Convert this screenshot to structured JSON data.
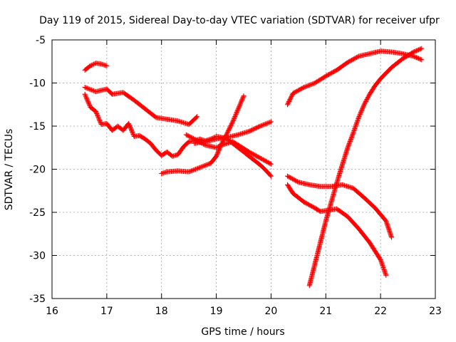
{
  "chart_data": {
    "type": "scatter",
    "title": "Day 119 of 2015, Sidereal Day-to-day VTEC variation (SDTVAR) for receiver ufpr",
    "xlabel": "GPS time / hours",
    "ylabel": "SDTVAR / TECUs",
    "xlim": [
      16,
      23
    ],
    "ylim": [
      -35,
      -5
    ],
    "xticks": [
      16,
      17,
      18,
      19,
      20,
      21,
      22,
      23
    ],
    "yticks": [
      -35,
      -30,
      -25,
      -20,
      -15,
      -10,
      -5
    ],
    "grid": true,
    "marker": "+",
    "color": "#ff0000",
    "series": [
      {
        "x": [
          16.6,
          16.7,
          16.8,
          16.9,
          17.0
        ],
        "y": [
          -8.5,
          -8.0,
          -7.7,
          -7.8,
          -8.0
        ]
      },
      {
        "x": [
          16.6,
          16.8,
          17.0,
          17.1,
          17.3,
          17.5,
          17.7,
          17.9,
          18.1,
          18.3,
          18.5,
          18.65
        ],
        "y": [
          -10.5,
          -11.0,
          -10.7,
          -11.3,
          -11.1,
          -12.0,
          -13.0,
          -14.0,
          -14.2,
          -14.4,
          -14.8,
          -13.9
        ]
      },
      {
        "x": [
          16.6,
          16.7,
          16.8,
          16.9,
          17.0,
          17.1,
          17.2,
          17.3,
          17.4,
          17.5,
          17.6,
          17.7,
          17.8,
          17.9,
          18.0,
          18.1,
          18.2,
          18.3,
          18.4,
          18.5,
          18.6,
          18.7,
          18.8,
          18.9,
          19.0,
          19.1,
          19.2,
          19.3,
          19.4,
          19.5,
          19.6,
          19.7,
          19.8,
          19.9,
          20.0
        ],
        "y": [
          -11.3,
          -12.8,
          -13.3,
          -14.8,
          -14.7,
          -15.5,
          -15.0,
          -15.5,
          -14.7,
          -16.2,
          -16.1,
          -16.5,
          -17.0,
          -17.8,
          -18.4,
          -18.0,
          -18.5,
          -18.3,
          -17.4,
          -16.8,
          -16.7,
          -16.5,
          -16.7,
          -16.5,
          -16.2,
          -16.3,
          -16.5,
          -17.0,
          -17.5,
          -18.0,
          -18.5,
          -19.0,
          -19.5,
          -20.1,
          -20.8
        ]
      },
      {
        "x": [
          18.0,
          18.1,
          18.3,
          18.5,
          18.7,
          18.9,
          19.0,
          19.1,
          19.2,
          19.3,
          19.4,
          19.5
        ],
        "y": [
          -20.5,
          -20.3,
          -20.2,
          -20.3,
          -19.8,
          -19.3,
          -18.5,
          -17.0,
          -15.8,
          -14.5,
          -13.0,
          -11.5
        ]
      },
      {
        "x": [
          18.6,
          18.8,
          19.0,
          19.2,
          19.4,
          19.6,
          19.8,
          20.0
        ],
        "y": [
          -17.0,
          -16.8,
          -16.5,
          -16.3,
          -16.0,
          -15.6,
          -15.0,
          -14.5
        ]
      },
      {
        "x": [
          18.45,
          18.6,
          18.8,
          19.0,
          19.1,
          19.2,
          19.3,
          19.4,
          19.5,
          19.6,
          19.8,
          20.0
        ],
        "y": [
          -16.0,
          -16.5,
          -17.2,
          -17.5,
          -17.2,
          -17.0,
          -16.8,
          -17.2,
          -17.6,
          -18.0,
          -18.7,
          -19.4
        ]
      },
      {
        "x": [
          20.3,
          20.4,
          20.6,
          20.8,
          21.0,
          21.2,
          21.4,
          21.6,
          21.8,
          22.0,
          22.2,
          22.4,
          22.6,
          22.75
        ],
        "y": [
          -12.5,
          -11.2,
          -10.5,
          -10.0,
          -9.2,
          -8.5,
          -7.6,
          -6.9,
          -6.6,
          -6.3,
          -6.4,
          -6.6,
          -6.9,
          -7.3
        ]
      },
      {
        "x": [
          20.3,
          20.5,
          20.7,
          20.9,
          21.1,
          21.3,
          21.5,
          21.7,
          21.9,
          22.1,
          22.2
        ],
        "y": [
          -20.8,
          -21.5,
          -21.8,
          -22.0,
          -22.0,
          -21.8,
          -22.2,
          -23.3,
          -24.5,
          -26.0,
          -27.9
        ]
      },
      {
        "x": [
          20.3,
          20.4,
          20.6,
          20.8,
          20.9,
          21.0,
          21.2,
          21.4,
          21.6,
          21.8,
          22.0,
          22.1
        ],
        "y": [
          -21.8,
          -22.8,
          -23.8,
          -24.5,
          -24.9,
          -24.8,
          -24.6,
          -25.5,
          -26.9,
          -28.5,
          -30.5,
          -32.3
        ]
      },
      {
        "x": [
          20.7,
          20.8,
          20.9,
          21.0,
          21.1,
          21.2,
          21.3,
          21.4,
          21.5,
          21.6,
          21.7,
          21.8,
          21.9,
          22.0,
          22.2,
          22.4,
          22.6,
          22.75
        ],
        "y": [
          -33.5,
          -31.0,
          -28.5,
          -26.0,
          -23.8,
          -21.6,
          -19.5,
          -17.5,
          -15.8,
          -14.0,
          -12.5,
          -11.3,
          -10.3,
          -9.5,
          -8.2,
          -7.2,
          -6.4,
          -6.0
        ]
      }
    ]
  }
}
